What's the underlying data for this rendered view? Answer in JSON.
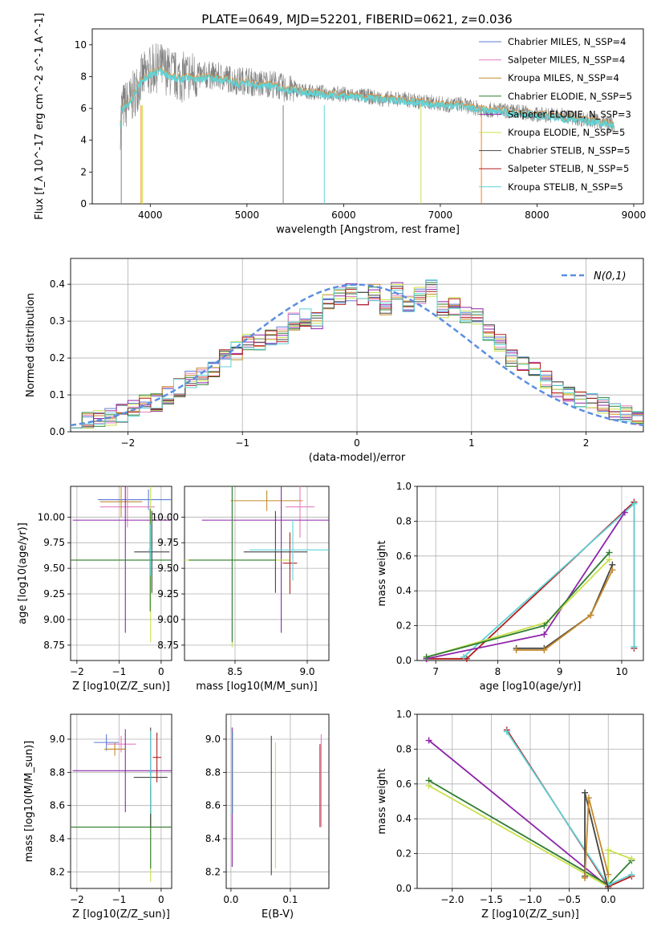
{
  "figure_title": "PLATE=0649, MJD=52201, FIBERID=0621, z=0.036",
  "colors": {
    "Chabrier MILES": "#5b7ed6",
    "Salpeter MILES": "#e37fbf",
    "Kroupa MILES": "#c48a2d",
    "Chabrier ELODIE": "#2e7d32",
    "Salpeter ELODIE": "#8e24aa",
    "Kroupa ELODIE": "#c9e04a",
    "Chabrier STELIB": "#444444",
    "Salpeter STELIB": "#b71c1c",
    "Kroupa STELIB": "#5fd3d8",
    "data": "#808080",
    "orange_model": "#ff7f0e"
  },
  "legend_labels": [
    "Chabrier MILES, N_SSP=4",
    "Salpeter MILES, N_SSP=4",
    "Kroupa MILES, N_SSP=4",
    "Chabrier ELODIE, N_SSP=5",
    "Salpeter ELODIE, N_SSP=3",
    "Kroupa ELODIE, N_SSP=5",
    "Chabrier STELIB, N_SSP=5",
    "Salpeter STELIB, N_SSP=5",
    "Kroupa STELIB, N_SSP=5"
  ],
  "chart_data": [
    {
      "type": "line",
      "id": "spectrum",
      "title": "PLATE=0649, MJD=52201, FIBERID=0621, z=0.036",
      "xlabel": "wavelength [Angstrom, rest frame]",
      "ylabel": "Flux [f_λ 10^-17 erg cm^-2 s^-1 A^-1]",
      "xlim": [
        3400,
        9100
      ],
      "ylim": [
        0,
        11
      ],
      "xticks": [
        4000,
        5000,
        6000,
        7000,
        8000,
        9000
      ],
      "yticks": [
        0,
        2,
        4,
        6,
        8,
        10
      ],
      "series": [
        {
          "name": "data",
          "x": [
            3700,
            3800,
            3900,
            4000,
            4100,
            4200,
            4300,
            4400,
            4500,
            4600,
            4700,
            4800,
            4900,
            5000,
            5100,
            5200,
            5300,
            5400,
            5500,
            5600,
            5700,
            5800,
            5900,
            6000,
            6100,
            6200,
            6300,
            6400,
            6500,
            6600,
            6700,
            6800,
            6900,
            7000,
            7100,
            7200,
            7300,
            7400,
            7500,
            7600,
            7700,
            7800,
            7900,
            8000,
            8100,
            8200,
            8300,
            8400,
            8500,
            8600,
            8700,
            8800
          ],
          "y": [
            6.0,
            6.5,
            7.8,
            8.4,
            8.6,
            8.3,
            7.9,
            8.1,
            8.0,
            8.1,
            8.0,
            7.9,
            7.7,
            7.8,
            7.5,
            7.6,
            7.5,
            7.2,
            7.2,
            7.1,
            7.0,
            7.0,
            6.9,
            6.9,
            6.8,
            6.8,
            6.7,
            6.6,
            6.6,
            6.6,
            6.5,
            6.4,
            6.4,
            6.3,
            6.2,
            6.3,
            6.1,
            6.0,
            5.9,
            5.9,
            5.8,
            5.8,
            5.7,
            5.6,
            5.6,
            5.6,
            5.5,
            5.4,
            5.3,
            5.2,
            5.1,
            5.0
          ]
        },
        {
          "name": "model",
          "x": [
            3700,
            3800,
            3900,
            4000,
            4100,
            4200,
            4300,
            4400,
            4500,
            4600,
            4700,
            4800,
            4900,
            5000,
            5100,
            5200,
            5300,
            5400,
            5500,
            5600,
            5700,
            5800,
            5900,
            6000,
            6100,
            6200,
            6300,
            6400,
            6500,
            6600,
            6700,
            6800,
            6900,
            7000,
            7100,
            7200,
            7300,
            7400,
            7500,
            7600,
            7700,
            7800,
            7900,
            8000,
            8100,
            8200,
            8300,
            8400,
            8500,
            8600,
            8700,
            8800
          ],
          "y": [
            6.0,
            6.5,
            7.7,
            8.2,
            8.4,
            8.1,
            7.9,
            8.0,
            7.9,
            8.0,
            7.9,
            7.8,
            7.6,
            7.7,
            7.5,
            7.5,
            7.4,
            7.2,
            7.2,
            7.0,
            7.0,
            6.9,
            6.9,
            6.8,
            6.8,
            6.7,
            6.7,
            6.6,
            6.6,
            6.5,
            6.5,
            6.4,
            6.3,
            6.3,
            6.2,
            6.2,
            6.1,
            6.0,
            5.9,
            5.9,
            5.8,
            5.7,
            5.7,
            5.6,
            5.6,
            5.5,
            5.4,
            5.4,
            5.3,
            5.2,
            5.1,
            5.0
          ]
        }
      ]
    },
    {
      "type": "area",
      "id": "residuals",
      "xlabel": "(data-model)/error",
      "ylabel": "Normed distribution",
      "xlim": [
        -2.5,
        2.5
      ],
      "ylim": [
        0,
        0.47
      ],
      "xticks": [
        -2,
        -1,
        0,
        1,
        2
      ],
      "yticks": [
        0.0,
        0.1,
        0.2,
        0.3,
        0.4
      ],
      "bin_edges_start": -2.5,
      "bin_width": 0.1,
      "histogram": [
        0.025,
        0.03,
        0.035,
        0.04,
        0.05,
        0.06,
        0.075,
        0.08,
        0.1,
        0.12,
        0.14,
        0.15,
        0.17,
        0.2,
        0.22,
        0.24,
        0.24,
        0.26,
        0.26,
        0.3,
        0.31,
        0.3,
        0.35,
        0.37,
        0.38,
        0.36,
        0.38,
        0.34,
        0.38,
        0.35,
        0.37,
        0.39,
        0.33,
        0.34,
        0.32,
        0.31,
        0.27,
        0.24,
        0.2,
        0.19,
        0.17,
        0.14,
        0.12,
        0.1,
        0.09,
        0.08,
        0.07,
        0.055,
        0.045,
        0.035
      ],
      "legend": "N(0,1)",
      "series": [
        {
          "name": "N(0,1)",
          "x_min": -2.5,
          "x_max": 2.5
        }
      ]
    },
    {
      "type": "scatter",
      "id": "age_vs_Z",
      "xlabel": "Z [log10(Z/Z_sun)]",
      "ylabel": "age [log10(age/yr)]",
      "xlim": [
        -2.15,
        0.25
      ],
      "ylim": [
        8.6,
        10.3
      ],
      "xticks": [
        -2,
        -1,
        0
      ],
      "yticks": [
        8.75,
        9.0,
        9.25,
        9.5,
        9.75,
        10.0
      ],
      "ytick_labels": [
        "8.75",
        "9.00",
        "9.25",
        "9.50",
        "9.75",
        "10.00"
      ],
      "points": [
        {
          "model": "Chabrier MILES",
          "x": -0.3,
          "y": 10.17,
          "xerr": 1.2,
          "yerr": 0.1
        },
        {
          "model": "Salpeter MILES",
          "x": -0.8,
          "y": 10.1,
          "xerr": 0.65,
          "yerr": 0.2
        },
        {
          "model": "Kroupa MILES",
          "x": -0.95,
          "y": 10.15,
          "xerr": 0.5,
          "yerr": 0.15
        },
        {
          "model": "Salpeter ELODIE",
          "x": -0.85,
          "y": 9.97,
          "xerr": 1.25,
          "yerr": 1.1
        },
        {
          "model": "Kroupa ELODIE",
          "x": -0.25,
          "y": 9.58,
          "xerr": 1.9,
          "yerr": 0.8
        },
        {
          "model": "Chabrier ELODIE",
          "x": -0.26,
          "y": 9.58,
          "xerr": 1.9,
          "yerr": 0.5
        },
        {
          "model": "Chabrier STELIB",
          "x": -0.22,
          "y": 9.66,
          "xerr": 0.42,
          "yerr": 0.4
        },
        {
          "model": "Kroupa STELIB",
          "x": -0.25,
          "y": 9.68,
          "xerr": 0.05,
          "yerr": 0.25
        }
      ]
    },
    {
      "type": "scatter",
      "id": "age_vs_mass",
      "xlabel": "mass [log10(M/M_sun)]",
      "ylabel": "",
      "xlim": [
        8.15,
        9.15
      ],
      "ylim": [
        8.6,
        10.3
      ],
      "xticks": [
        8.5,
        9.0
      ],
      "xtick_labels": [
        "8.5",
        "9.0"
      ],
      "yticks": [
        8.75,
        9.0,
        9.25,
        9.5,
        9.75,
        10.0
      ],
      "ytick_labels": [
        "8.75",
        "9.00",
        "9.25",
        "9.50",
        "9.75",
        "10.00"
      ],
      "points": [
        {
          "model": "Kroupa MILES",
          "x": 8.72,
          "y": 10.16,
          "xerr": 0.25,
          "yerr": 0.1
        },
        {
          "model": "Salpeter MILES",
          "x": 8.95,
          "y": 10.1,
          "xerr": 0.1,
          "yerr": 0.3
        },
        {
          "model": "Salpeter ELODIE",
          "x": 8.82,
          "y": 9.97,
          "xerr": 0.55,
          "yerr": 1.1
        },
        {
          "model": "Kroupa ELODIE",
          "x": 8.48,
          "y": 9.58,
          "xerr": 0.4,
          "yerr": 0.85
        },
        {
          "model": "Chabrier ELODIE",
          "x": 8.48,
          "y": 9.58,
          "xerr": 0.3,
          "yerr": 0.8
        },
        {
          "model": "Chabrier STELIB",
          "x": 8.78,
          "y": 9.66,
          "xerr": 0.22,
          "yerr": 0.4
        },
        {
          "model": "Salpeter STELIB",
          "x": 8.88,
          "y": 9.55,
          "xerr": 0.05,
          "yerr": 0.3
        },
        {
          "model": "Kroupa STELIB",
          "x": 8.9,
          "y": 9.68,
          "xerr": 0.3,
          "yerr": 0.3
        }
      ]
    },
    {
      "type": "line",
      "id": "weight_vs_age",
      "xlabel": "age [log10(age/yr)]",
      "ylabel": "mass weight",
      "xlim": [
        6.7,
        10.35
      ],
      "ylim": [
        0,
        1
      ],
      "xticks": [
        7,
        8,
        9,
        10
      ],
      "yticks": [
        0.0,
        0.2,
        0.4,
        0.6,
        0.8,
        1.0
      ],
      "series": [
        {
          "name": "Salpeter STELIB",
          "x": [
            6.85,
            7.5,
            10.2,
            10.2
          ],
          "y": [
            0.01,
            0.01,
            0.91,
            0.07
          ]
        },
        {
          "name": "Kroupa STELIB",
          "x": [
            7.45,
            10.2,
            10.2
          ],
          "y": [
            0.02,
            0.9,
            0.08
          ]
        },
        {
          "name": "Salpeter ELODIE",
          "x": [
            6.85,
            8.75,
            10.05
          ],
          "y": [
            0.01,
            0.15,
            0.85
          ]
        },
        {
          "name": "Kroupa ELODIE",
          "x": [
            6.85,
            8.8,
            9.8
          ],
          "y": [
            0.02,
            0.22,
            0.58
          ]
        },
        {
          "name": "Chabrier ELODIE",
          "x": [
            6.85,
            8.75,
            9.8
          ],
          "y": [
            0.02,
            0.2,
            0.62
          ]
        },
        {
          "name": "Chabrier STELIB",
          "x": [
            8.3,
            8.75,
            9.5,
            9.85
          ],
          "y": [
            0.07,
            0.07,
            0.26,
            0.55
          ]
        },
        {
          "name": "Kroupa MILES",
          "x": [
            8.3,
            8.75,
            9.5,
            9.85
          ],
          "y": [
            0.06,
            0.06,
            0.26,
            0.52
          ]
        }
      ]
    },
    {
      "type": "scatter",
      "id": "mass_vs_Z",
      "xlabel": "Z [log10(Z/Z_sun)]",
      "ylabel": "mass [log10(M/M_sun)]",
      "xlim": [
        -2.15,
        0.25
      ],
      "ylim": [
        8.1,
        9.15
      ],
      "xticks": [
        -2,
        -1,
        0
      ],
      "yticks": [
        8.2,
        8.4,
        8.6,
        8.8,
        9.0
      ],
      "points": [
        {
          "model": "Chabrier MILES",
          "x": -1.3,
          "y": 8.98,
          "xerr": 0.3,
          "yerr": 0.05
        },
        {
          "model": "Salpeter MILES",
          "x": -0.95,
          "y": 8.97,
          "xerr": 0.35,
          "yerr": 0.05
        },
        {
          "model": "Kroupa MILES",
          "x": -1.1,
          "y": 8.94,
          "xerr": 0.25,
          "yerr": 0.04
        },
        {
          "model": "Salpeter ELODIE",
          "x": -0.85,
          "y": 8.81,
          "xerr": 1.25,
          "yerr": 0.25
        },
        {
          "model": "Kroupa ELODIE",
          "x": -0.25,
          "y": 8.47,
          "xerr": 1.9,
          "yerr": 0.33
        },
        {
          "model": "Chabrier ELODIE",
          "x": -0.25,
          "y": 8.47,
          "xerr": 1.9,
          "yerr": 0.25
        },
        {
          "model": "Chabrier STELIB",
          "x": -0.25,
          "y": 8.77,
          "xerr": 0.4,
          "yerr": 0.3
        },
        {
          "model": "Salpeter STELIB",
          "x": -0.1,
          "y": 8.89,
          "xerr": 0.1,
          "yerr": 0.15
        },
        {
          "model": "Kroupa STELIB",
          "x": -0.25,
          "y": 8.8,
          "xerr": 0.05,
          "yerr": 0.25
        }
      ]
    },
    {
      "type": "scatter",
      "id": "mass_vs_EBV",
      "xlabel": "E(B-V)",
      "ylabel": "",
      "xlim": [
        -0.008,
        0.165
      ],
      "ylim": [
        8.1,
        9.15
      ],
      "xticks": [
        0.0,
        0.1
      ],
      "xtick_labels": [
        "0.0",
        "0.1"
      ],
      "yticks": [
        8.2,
        8.4,
        8.6,
        8.8,
        9.0
      ],
      "points": [
        {
          "model": "Salpeter ELODIE",
          "x": 0.002,
          "y": 8.65,
          "yerr": 0.42
        },
        {
          "model": "Kroupa STELIB",
          "x": 0.003,
          "y": 8.8,
          "yerr": 0.25
        },
        {
          "model": "Chabrier STELIB",
          "x": 0.068,
          "y": 8.6,
          "yerr": 0.42
        },
        {
          "model": "Kroupa ELODIE",
          "x": 0.075,
          "y": 8.6,
          "yerr": 0.38
        },
        {
          "model": "Salpeter MILES",
          "x": 0.152,
          "y": 8.75,
          "yerr": 0.28
        },
        {
          "model": "Salpeter STELIB",
          "x": 0.15,
          "y": 8.72,
          "yerr": 0.25
        }
      ]
    },
    {
      "type": "line",
      "id": "weight_vs_Z",
      "xlabel": "Z [log10(Z/Z_sun)]",
      "ylabel": "mass weight",
      "xlim": [
        -2.45,
        0.45
      ],
      "ylim": [
        0,
        1
      ],
      "xticks": [
        -2.0,
        -1.5,
        -1.0,
        -0.5,
        0.0
      ],
      "xtick_labels": [
        "−2.0",
        "−1.5",
        "−1.0",
        "−0.5",
        "0.0"
      ],
      "yticks": [
        0.0,
        0.2,
        0.4,
        0.6,
        0.8,
        1.0
      ],
      "series": [
        {
          "name": "Salpeter ELODIE",
          "x": [
            -2.3,
            0.0
          ],
          "y": [
            0.85,
            0.01
          ]
        },
        {
          "name": "Chabrier ELODIE",
          "x": [
            -2.3,
            0.0,
            0.3
          ],
          "y": [
            0.62,
            0.02,
            0.16
          ]
        },
        {
          "name": "Kroupa ELODIE",
          "x": [
            -2.3,
            0.0,
            0.0,
            0.3
          ],
          "y": [
            0.59,
            0.01,
            0.22,
            0.17
          ]
        },
        {
          "name": "Salpeter STELIB",
          "x": [
            -1.3,
            0.0,
            0.3
          ],
          "y": [
            0.91,
            0.01,
            0.07
          ]
        },
        {
          "name": "Kroupa STELIB",
          "x": [
            -1.3,
            0.0,
            0.3
          ],
          "y": [
            0.9,
            0.02,
            0.08
          ]
        },
        {
          "name": "Chabrier STELIB",
          "x": [
            -0.3,
            -0.3,
            0.0
          ],
          "y": [
            0.07,
            0.55,
            0.0
          ]
        },
        {
          "name": "Kroupa MILES",
          "x": [
            -0.3,
            -0.25,
            0.0
          ],
          "y": [
            0.06,
            0.52,
            0.08
          ]
        }
      ]
    }
  ]
}
